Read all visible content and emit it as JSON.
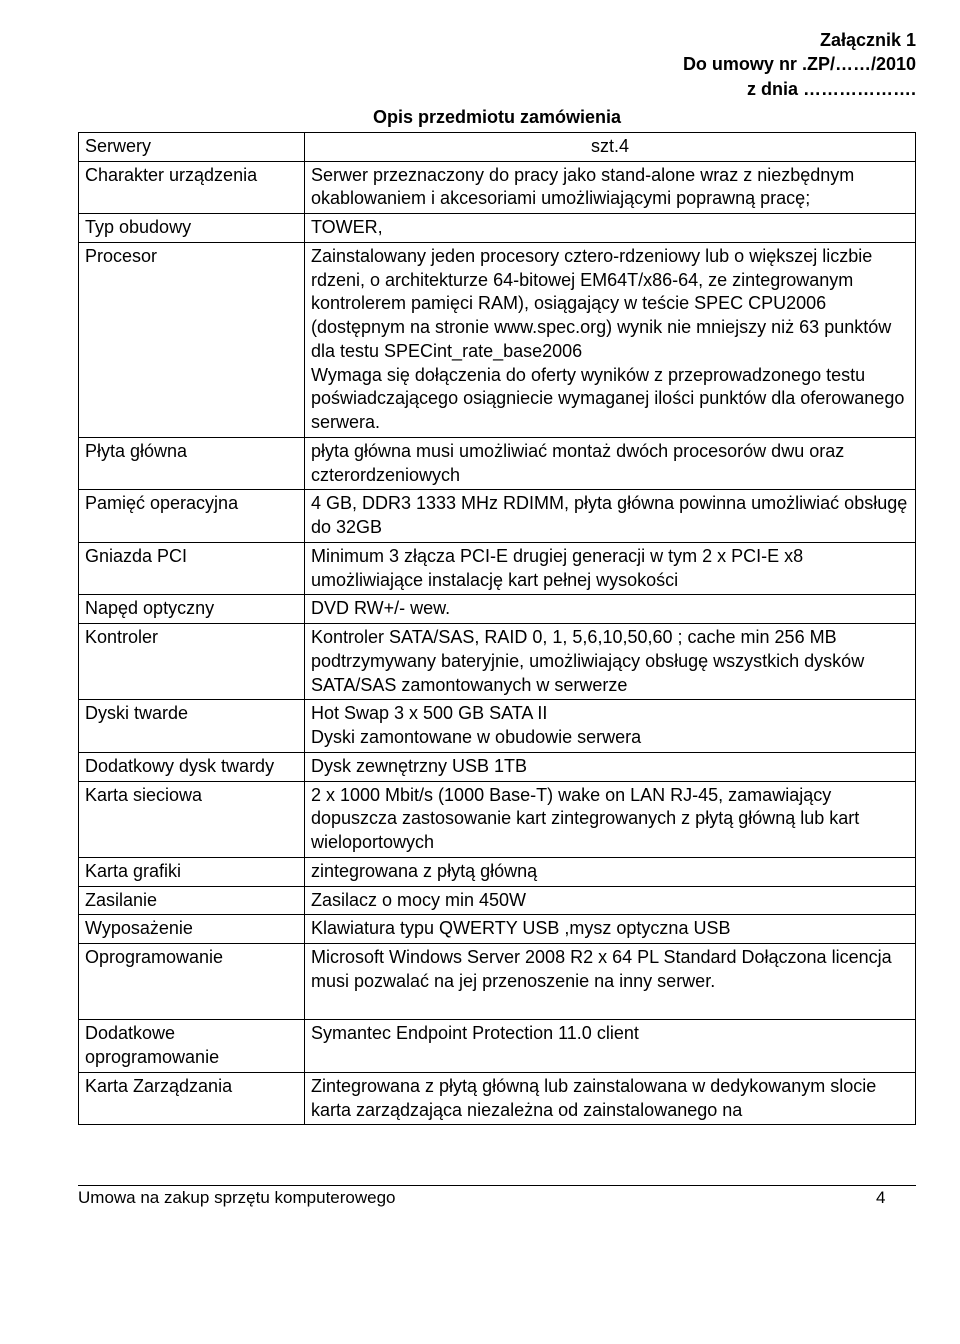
{
  "header": {
    "line1": "Załącznik 1",
    "line2": "Do umowy nr .ZP/……/2010",
    "line3": "z dnia ………………."
  },
  "title": "Opis przedmiotu zamówienia",
  "rows": [
    {
      "label": "Serwery",
      "value": "szt.4",
      "center": true
    },
    {
      "label": "Charakter urządzenia",
      "value": "Serwer przeznaczony do pracy jako stand-alone wraz z niezbędnym okablowaniem i akcesoriami umożliwiającymi poprawną pracę;"
    },
    {
      "label": "Typ obudowy",
      "value": "TOWER,"
    },
    {
      "label": "Procesor",
      "value": "Zainstalowany jeden procesory cztero-rdzeniowy lub o większej liczbie rdzeni, o architekturze 64-bitowej EM64T/x86-64, ze zintegrowanym kontrolerem pamięci RAM), osiągający w teście SPEC CPU2006 (dostępnym na stronie www.spec.org) wynik nie mniejszy niż 63 punktów dla testu SPECint_rate_base2006\nWymaga się dołączenia do oferty wyników z przeprowadzonego testu poświadczającego osiągniecie wymaganej ilości punktów dla oferowanego serwera."
    },
    {
      "label": "Płyta główna",
      "value": " płyta główna musi umożliwiać montaż dwóch procesorów dwu oraz czterordzeniowych"
    },
    {
      "label": "Pamięć operacyjna",
      "value": "4 GB, DDR3 1333 MHz RDIMM, płyta główna powinna umożliwiać obsługę do 32GB"
    },
    {
      "label": "Gniazda PCI",
      "value": "Minimum 3 złącza PCI-E drugiej generacji w tym 2 x PCI-E x8 umożliwiające instalację kart pełnej wysokości"
    },
    {
      "label": "Napęd optyczny",
      "value": "DVD RW+/- wew."
    },
    {
      "label": "Kontroler",
      "value": "Kontroler SATA/SAS, RAID 0, 1, 5,6,10,50,60 ; cache min 256 MB podtrzymywany bateryjnie, umożliwiający obsługę wszystkich dysków SATA/SAS zamontowanych w serwerze"
    },
    {
      "label": "Dyski twarde",
      "value": "Hot Swap 3 x 500 GB  SATA II\nDyski zamontowane w obudowie serwera"
    },
    {
      "label": "Dodatkowy dysk twardy",
      "value": "Dysk zewnętrzny  USB 1TB"
    },
    {
      "label": "Karta sieciowa",
      "value": "2 x 1000 Mbit/s (1000 Base-T) wake on LAN RJ-45, zamawiający dopuszcza zastosowanie kart zintegrowanych z płytą główną lub kart wieloportowych"
    },
    {
      "label": "Karta grafiki",
      "value": "zintegrowana z płytą główną"
    },
    {
      "label": "Zasilanie",
      "value": "Zasilacz o  mocy min 450W"
    },
    {
      "label": "Wyposażenie",
      "value": "Klawiatura typu QWERTY USB ,mysz optyczna USB"
    },
    {
      "label": "Oprogramowanie",
      "value": "Microsoft Windows Server 2008 R2 x 64 PL Standard Dołączona licencja musi pozwalać na jej przenoszenie na inny serwer.",
      "gapAfter": true
    },
    {
      "label": "Dodatkowe oprogramowanie",
      "value": "Symantec Endpoint Protection 11.0 client"
    },
    {
      "label": "Karta Zarządzania",
      "value": "Zintegrowana z płytą główną lub zainstalowana w dedykowanym slocie karta zarządzająca niezależna od zainstalowanego na"
    }
  ],
  "footer": {
    "text": "Umowa na zakup sprzętu komputerowego",
    "page": "4"
  }
}
